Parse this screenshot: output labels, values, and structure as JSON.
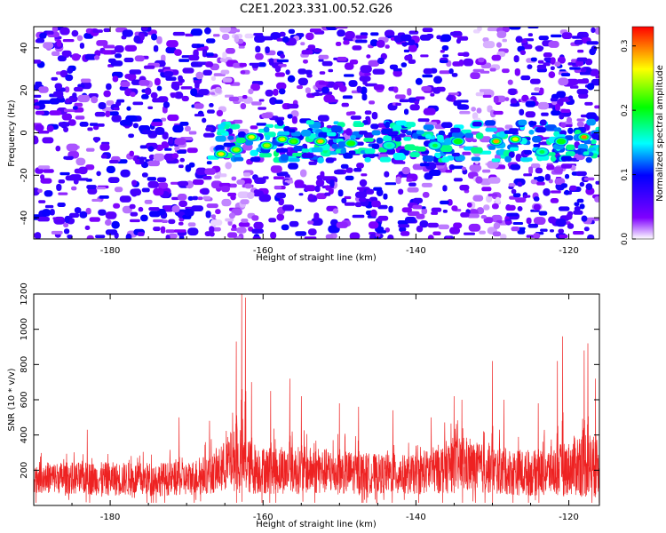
{
  "chart_data": [
    {
      "type": "heatmap",
      "title": "C2E1.2023.331.00.52.G26",
      "xlabel": "Height of straight line (km)",
      "ylabel": "Frequency (Hz)",
      "xlim": [
        -190,
        -116
      ],
      "ylim": [
        -50,
        50
      ],
      "xticks": [
        -180,
        -160,
        -140,
        -120
      ],
      "yticks": [
        -40,
        -20,
        0,
        20,
        40
      ],
      "colorbar": {
        "label": "Normalized spectral amplitude",
        "range": [
          0.0,
          0.33
        ],
        "ticks": [
          0.0,
          0.1,
          0.2,
          0.3
        ],
        "colormap": [
          "#ffffff",
          "#7f00ff",
          "#0000ff",
          "#00ffff",
          "#00ff00",
          "#ffff00",
          "#ff0000"
        ]
      },
      "background_level": 0.05,
      "blank_bands_x": [
        [
          -166.5,
          -161.5
        ],
        [
          -133,
          -128
        ]
      ],
      "ridge": {
        "x_range": [
          -166.5,
          -116
        ],
        "freq_hz": -4,
        "peaks": [
          {
            "x": -165.5,
            "f": -10,
            "a": 0.27
          },
          {
            "x": -163.5,
            "f": -8,
            "a": 0.24
          },
          {
            "x": -161.5,
            "f": -2,
            "a": 0.26
          },
          {
            "x": -159.5,
            "f": -6,
            "a": 0.24
          },
          {
            "x": -157.5,
            "f": -3,
            "a": 0.25
          },
          {
            "x": -156.0,
            "f": -4,
            "a": 0.22
          },
          {
            "x": -152.5,
            "f": -4,
            "a": 0.28
          },
          {
            "x": -148.5,
            "f": -5,
            "a": 0.21
          },
          {
            "x": -143.5,
            "f": -6,
            "a": 0.17
          },
          {
            "x": -137.5,
            "f": -6,
            "a": 0.19
          },
          {
            "x": -134.5,
            "f": -4,
            "a": 0.2
          },
          {
            "x": -129.5,
            "f": -4,
            "a": 0.29
          },
          {
            "x": -127.0,
            "f": -3,
            "a": 0.26
          },
          {
            "x": -123.5,
            "f": -9,
            "a": 0.19
          },
          {
            "x": -121.0,
            "f": -4,
            "a": 0.2
          },
          {
            "x": -118.0,
            "f": -2,
            "a": 0.3
          }
        ]
      }
    },
    {
      "type": "line",
      "title": "",
      "xlabel": "Height of straight line (km)",
      "ylabel": "SNR (10 * v/v)",
      "xlim": [
        -190,
        -116
      ],
      "ylim": [
        0,
        1200
      ],
      "xticks": [
        -180,
        -160,
        -140,
        -120
      ],
      "yticks": [
        200,
        400,
        600,
        800,
        1000,
        1200
      ],
      "series": [
        {
          "color": "#ee2222",
          "baseline_profile": {
            "x": [
              -190,
              -180,
              -170,
              -166,
              -164,
              -162,
              -160,
              -155,
              -150,
              -145,
              -140,
              -135,
              -130,
              -125,
              -120,
              -118,
              -116
            ],
            "median": [
              160,
              150,
              150,
              190,
              260,
              220,
              200,
              200,
              190,
              180,
              175,
              230,
              200,
              180,
              210,
              250,
              200
            ],
            "spread": [
              110,
              120,
              120,
              150,
              220,
              200,
              170,
              170,
              160,
              140,
              140,
              200,
              170,
              160,
              190,
              260,
              200
            ]
          },
          "spikes": [
            {
              "x": -162.8,
              "y": 1200
            },
            {
              "x": -162.3,
              "y": 1180
            },
            {
              "x": -163.5,
              "y": 930
            },
            {
              "x": -161.5,
              "y": 700
            },
            {
              "x": -159.0,
              "y": 650
            },
            {
              "x": -156.5,
              "y": 720
            },
            {
              "x": -155.0,
              "y": 620
            },
            {
              "x": -150.0,
              "y": 580
            },
            {
              "x": -147.5,
              "y": 560
            },
            {
              "x": -143.0,
              "y": 540
            },
            {
              "x": -138.0,
              "y": 500
            },
            {
              "x": -135.0,
              "y": 620
            },
            {
              "x": -134.0,
              "y": 600
            },
            {
              "x": -130.0,
              "y": 820
            },
            {
              "x": -128.5,
              "y": 600
            },
            {
              "x": -124.0,
              "y": 580
            },
            {
              "x": -121.5,
              "y": 820
            },
            {
              "x": -120.8,
              "y": 960
            },
            {
              "x": -118.0,
              "y": 880
            },
            {
              "x": -117.5,
              "y": 920
            },
            {
              "x": -116.5,
              "y": 720
            },
            {
              "x": -171.0,
              "y": 500
            },
            {
              "x": -167.0,
              "y": 480
            },
            {
              "x": -183.0,
              "y": 430
            }
          ]
        }
      ]
    }
  ]
}
